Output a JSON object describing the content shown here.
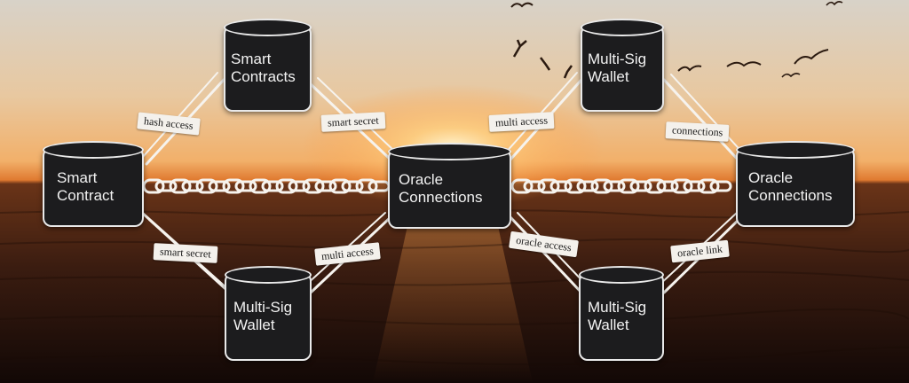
{
  "nodes": {
    "smart_contract_top": {
      "line1": "Smart",
      "line2": "Contracts"
    },
    "smart_contract_left": {
      "line1": "Smart",
      "line2": "Contract"
    },
    "oracle_center": {
      "line1": "Oracle",
      "line2": "Connections"
    },
    "multisig_top_right": {
      "line1": "Multi-Sig",
      "line2": "Wallet"
    },
    "oracle_right": {
      "line1": "Oracle",
      "line2": "Connections"
    },
    "multisig_bottom_left": {
      "line1": "Multi-Sig",
      "line2": "Wallet"
    },
    "multisig_bottom_right": {
      "line1": "Multi-Sig",
      "line2": "Wallet"
    }
  },
  "edge_labels": {
    "top_left": "hash access",
    "top_mid_left": "smart secret",
    "top_mid_right": "multi access",
    "top_right": "connections",
    "bottom_left": "smart secret",
    "bottom_mid_left": "multi access",
    "bottom_mid_right": "oracle access",
    "bottom_right": "oracle link"
  }
}
